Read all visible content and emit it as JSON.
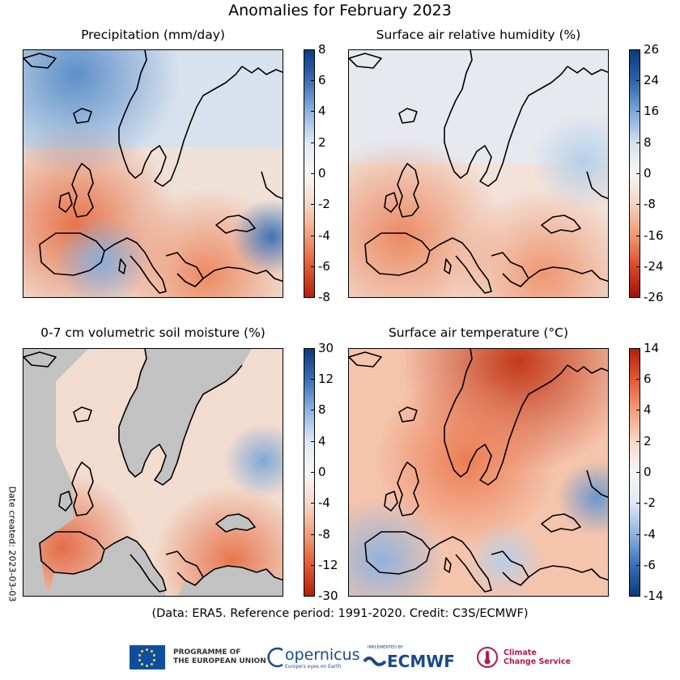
{
  "title": "Anomalies for February 2023",
  "panels": [
    {
      "id": "precip",
      "title": "Precipitation (mm/day)",
      "ticks": [
        "8",
        "6",
        "4",
        "2",
        "0",
        "-2",
        "-4",
        "-6",
        "-8"
      ],
      "tick_values": [
        8,
        6,
        4,
        2,
        0,
        -2,
        -4,
        -6,
        -8
      ],
      "colormap": "orange-to-blue diverging (negative red, positive blue)"
    },
    {
      "id": "humidity",
      "title": "Surface air relative humidity (%)",
      "ticks": [
        "26",
        "24",
        "16",
        "8",
        "0",
        "-8",
        "-16",
        "-24",
        "-26"
      ],
      "tick_values": [
        26,
        24,
        16,
        8,
        0,
        -8,
        -16,
        -24,
        -26
      ],
      "colormap": "orange-to-blue diverging (negative red, positive blue)"
    },
    {
      "id": "soil",
      "title": "0-7 cm volumetric soil moisture (%)",
      "ticks": [
        "30",
        "12",
        "8",
        "4",
        "0",
        "-4",
        "-8",
        "-12",
        "-30"
      ],
      "tick_values": [
        30,
        12,
        8,
        4,
        0,
        -4,
        -8,
        -12,
        -30
      ],
      "colormap": "orange-to-blue diverging (negative red, positive blue)",
      "masked_color": "#c2c2c2"
    },
    {
      "id": "temp",
      "title": "Surface air temperature (°C)",
      "ticks": [
        "14",
        "6",
        "4",
        "2",
        "0",
        "-2",
        "-4",
        "-6",
        "-14"
      ],
      "tick_values": [
        14,
        6,
        4,
        2,
        0,
        -2,
        -4,
        -6,
        -14
      ],
      "colormap": "blue-to-red diverging (negative blue, positive red)"
    }
  ],
  "date_created": "Date created: 2023-03-03",
  "credit": "(Data: ERA5.  Reference period: 1991-2020.  Credit: C3S/ECMWF)",
  "logos": {
    "eu_line1": "PROGRAMME OF",
    "eu_line2": "THE EUROPEAN UNION",
    "copernicus": "opernicus",
    "copernicus_tagline": "Europe's eyes on Earth",
    "ecmwf_tagline": "IMPLEMENTED BY",
    "ecmwf": "ECMWF",
    "c3s_line1": "Climate",
    "c3s_line2": "Change Service"
  },
  "colors": {
    "red": "#c8401e",
    "orange": "#f2a27f",
    "white": "#f7f7f7",
    "blue_light": "#a9c7e6",
    "blue": "#2b62a6",
    "land_mask": "#c2c2c2",
    "brand_blue": "#1a4a8a",
    "c3s_red": "#b5174f"
  }
}
